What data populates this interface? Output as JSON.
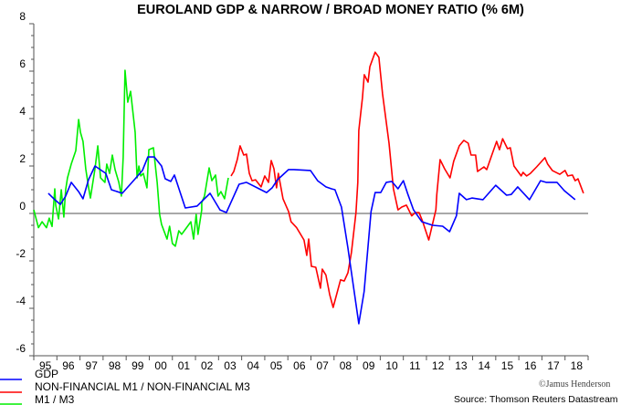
{
  "chart_data": {
    "type": "line",
    "title": "EUROLAND GDP & NARROW / BROAD MONEY RATIO (% 6M)",
    "xlabel": "",
    "ylabel": "",
    "ylim": [
      -6,
      8
    ],
    "xlim": [
      1995,
      2019
    ],
    "yticks": [
      "8",
      "6",
      "4",
      "2",
      "0",
      "-2",
      "-4",
      "-6"
    ],
    "ytick_values": [
      8,
      6,
      4,
      2,
      0,
      -2,
      -4,
      -6
    ],
    "xticks": [
      "95",
      "96",
      "97",
      "98",
      "99",
      "00",
      "01",
      "02",
      "03",
      "04",
      "05",
      "06",
      "07",
      "08",
      "09",
      "10",
      "11",
      "12",
      "13",
      "14",
      "15",
      "16",
      "17",
      "18"
    ],
    "legend_position": "bottom-left",
    "source": "Source: Thomson Reuters Datastream",
    "credit": "©Jamus Henderson",
    "series": [
      {
        "name": "GDP",
        "color": "#0000ff",
        "points": [
          [
            1995.63,
            0.85
          ],
          [
            1995.91,
            0.58
          ],
          [
            1996.15,
            0.38
          ],
          [
            1996.38,
            0.73
          ],
          [
            1996.62,
            1.31
          ],
          [
            1996.94,
            0.92
          ],
          [
            1997.13,
            0.62
          ],
          [
            1997.37,
            1.42
          ],
          [
            1997.65,
            2.0
          ],
          [
            1998.12,
            1.69
          ],
          [
            1998.36,
            1.0
          ],
          [
            1998.83,
            0.85
          ],
          [
            1999.39,
            1.46
          ],
          [
            1999.7,
            1.81
          ],
          [
            1999.94,
            2.38
          ],
          [
            2000.22,
            2.38
          ],
          [
            2000.53,
            2.0
          ],
          [
            2000.69,
            1.46
          ],
          [
            2000.93,
            1.35
          ],
          [
            2001.09,
            1.62
          ],
          [
            2001.56,
            0.23
          ],
          [
            2002.07,
            0.31
          ],
          [
            2002.63,
            0.85
          ],
          [
            2003.06,
            0.15
          ],
          [
            2003.34,
            0.04
          ],
          [
            2003.89,
            1.23
          ],
          [
            2004.21,
            1.31
          ],
          [
            2004.76,
            1.04
          ],
          [
            2005.08,
            0.88
          ],
          [
            2005.32,
            1.08
          ],
          [
            2005.55,
            1.42
          ],
          [
            2006.03,
            1.85
          ],
          [
            2006.26,
            1.85
          ],
          [
            2006.98,
            1.81
          ],
          [
            2007.29,
            1.38
          ],
          [
            2007.65,
            1.12
          ],
          [
            2007.89,
            1.04
          ],
          [
            2008.04,
            1.0
          ],
          [
            2008.32,
            0.27
          ],
          [
            2008.6,
            -1.46
          ],
          [
            2009.07,
            -4.65
          ],
          [
            2009.3,
            -3.3
          ],
          [
            2009.6,
            0.08
          ],
          [
            2009.78,
            0.88
          ],
          [
            2010.02,
            0.88
          ],
          [
            2010.26,
            1.31
          ],
          [
            2010.5,
            1.35
          ],
          [
            2010.77,
            1.04
          ],
          [
            2011.0,
            1.38
          ],
          [
            2011.2,
            0.8
          ],
          [
            2011.44,
            0.15
          ],
          [
            2011.8,
            -0.35
          ],
          [
            2012.27,
            -0.5
          ],
          [
            2012.7,
            -0.54
          ],
          [
            2013.0,
            -0.77
          ],
          [
            2013.3,
            -0.1
          ],
          [
            2013.42,
            0.85
          ],
          [
            2013.73,
            0.58
          ],
          [
            2013.97,
            0.65
          ],
          [
            2014.45,
            0.58
          ],
          [
            2015.0,
            1.19
          ],
          [
            2015.47,
            0.77
          ],
          [
            2015.67,
            0.8
          ],
          [
            2015.95,
            1.12
          ],
          [
            2016.46,
            0.58
          ],
          [
            2016.94,
            1.38
          ],
          [
            2017.18,
            1.31
          ],
          [
            2017.65,
            1.31
          ],
          [
            2017.97,
            0.96
          ],
          [
            2018.44,
            0.58
          ]
        ]
      },
      {
        "name": "NON-FINANCIAL M1 / NON-FINANCIAL M3",
        "color": "#ff0000",
        "points": [
          [
            2003.54,
            1.58
          ],
          [
            2003.66,
            1.77
          ],
          [
            2003.81,
            2.27
          ],
          [
            2003.93,
            2.85
          ],
          [
            2004.09,
            2.46
          ],
          [
            2004.21,
            2.5
          ],
          [
            2004.33,
            1.69
          ],
          [
            2004.45,
            1.38
          ],
          [
            2004.6,
            1.42
          ],
          [
            2004.84,
            1.12
          ],
          [
            2005.0,
            1.58
          ],
          [
            2005.16,
            1.31
          ],
          [
            2005.28,
            2.23
          ],
          [
            2005.4,
            1.88
          ],
          [
            2005.51,
            1.08
          ],
          [
            2005.59,
            1.69
          ],
          [
            2005.79,
            0.62
          ],
          [
            2006.03,
            0.08
          ],
          [
            2006.14,
            -0.35
          ],
          [
            2006.38,
            -0.6
          ],
          [
            2006.7,
            -1.12
          ],
          [
            2006.82,
            -1.77
          ],
          [
            2006.9,
            -1.08
          ],
          [
            2007.02,
            -2.23
          ],
          [
            2007.21,
            -2.27
          ],
          [
            2007.41,
            -3.15
          ],
          [
            2007.49,
            -2.35
          ],
          [
            2007.65,
            -2.6
          ],
          [
            2007.81,
            -3.42
          ],
          [
            2007.96,
            -3.96
          ],
          [
            2008.28,
            -2.8
          ],
          [
            2008.44,
            -2.85
          ],
          [
            2008.6,
            -2.5
          ],
          [
            2008.75,
            -1.65
          ],
          [
            2008.95,
            0.04
          ],
          [
            2009.03,
            1.31
          ],
          [
            2009.07,
            3.5
          ],
          [
            2009.23,
            4.88
          ],
          [
            2009.31,
            5.85
          ],
          [
            2009.47,
            5.54
          ],
          [
            2009.55,
            6.19
          ],
          [
            2009.78,
            6.8
          ],
          [
            2009.94,
            6.58
          ],
          [
            2010.1,
            5.04
          ],
          [
            2010.38,
            2.96
          ],
          [
            2010.57,
            1.04
          ],
          [
            2010.77,
            0.15
          ],
          [
            2010.93,
            0.27
          ],
          [
            2011.13,
            0.35
          ],
          [
            2011.36,
            -0.1
          ],
          [
            2011.52,
            0.04
          ],
          [
            2011.68,
            0.04
          ],
          [
            2011.84,
            -0.35
          ],
          [
            2012.1,
            -1.12
          ],
          [
            2012.41,
            0.15
          ],
          [
            2012.45,
            0.8
          ],
          [
            2012.59,
            2.27
          ],
          [
            2012.79,
            1.88
          ],
          [
            2013.02,
            1.5
          ],
          [
            2013.18,
            2.2
          ],
          [
            2013.42,
            2.85
          ],
          [
            2013.62,
            3.08
          ],
          [
            2013.81,
            2.96
          ],
          [
            2013.93,
            2.46
          ],
          [
            2014.13,
            2.46
          ],
          [
            2014.21,
            1.77
          ],
          [
            2014.49,
            1.96
          ],
          [
            2014.61,
            1.85
          ],
          [
            2014.8,
            2.38
          ],
          [
            2015.04,
            3.04
          ],
          [
            2015.16,
            2.69
          ],
          [
            2015.3,
            3.15
          ],
          [
            2015.51,
            2.73
          ],
          [
            2015.63,
            2.77
          ],
          [
            2015.79,
            2.0
          ],
          [
            2016.1,
            1.58
          ],
          [
            2016.18,
            1.73
          ],
          [
            2016.34,
            1.58
          ],
          [
            2016.5,
            1.69
          ],
          [
            2016.77,
            1.96
          ],
          [
            2017.13,
            2.35
          ],
          [
            2017.25,
            2.08
          ],
          [
            2017.45,
            1.81
          ],
          [
            2017.77,
            1.65
          ],
          [
            2018.0,
            1.81
          ],
          [
            2018.12,
            1.58
          ],
          [
            2018.32,
            1.62
          ],
          [
            2018.44,
            1.38
          ],
          [
            2018.56,
            1.46
          ],
          [
            2018.8,
            0.85
          ]
        ]
      },
      {
        "name": "M1 / M3",
        "color": "#00ee00",
        "points": [
          [
            1995.0,
            0.15
          ],
          [
            1995.2,
            -0.6
          ],
          [
            1995.36,
            -0.35
          ],
          [
            1995.55,
            -0.6
          ],
          [
            1995.67,
            -0.2
          ],
          [
            1995.79,
            -0.55
          ],
          [
            1995.91,
            1.04
          ],
          [
            1995.95,
            0.35
          ],
          [
            1996.07,
            -0.23
          ],
          [
            1996.19,
            1.0
          ],
          [
            1996.3,
            -0.15
          ],
          [
            1996.38,
            1.0
          ],
          [
            1996.46,
            1.5
          ],
          [
            1996.62,
            2.08
          ],
          [
            1996.82,
            2.65
          ],
          [
            1996.94,
            3.96
          ],
          [
            1997.02,
            3.42
          ],
          [
            1997.13,
            3.04
          ],
          [
            1997.25,
            1.88
          ],
          [
            1997.37,
            1.12
          ],
          [
            1997.45,
            0.65
          ],
          [
            1997.65,
            1.88
          ],
          [
            1997.77,
            2.85
          ],
          [
            1997.89,
            1.5
          ],
          [
            1998.08,
            1.31
          ],
          [
            1998.16,
            2.08
          ],
          [
            1998.28,
            1.69
          ],
          [
            1998.4,
            2.46
          ],
          [
            1998.52,
            1.85
          ],
          [
            1998.68,
            1.31
          ],
          [
            1998.79,
            0.73
          ],
          [
            1998.87,
            2.38
          ],
          [
            1998.95,
            6.04
          ],
          [
            1999.07,
            4.69
          ],
          [
            1999.19,
            5.15
          ],
          [
            1999.39,
            3.42
          ],
          [
            1999.47,
            1.5
          ],
          [
            1999.55,
            2.0
          ],
          [
            1999.63,
            1.58
          ],
          [
            1999.74,
            1.69
          ],
          [
            1999.9,
            1.08
          ],
          [
            1999.98,
            2.69
          ],
          [
            2000.18,
            2.77
          ],
          [
            2000.34,
            1.31
          ],
          [
            2000.45,
            -0.04
          ],
          [
            2000.53,
            -0.46
          ],
          [
            2000.77,
            -1.08
          ],
          [
            2000.88,
            -0.54
          ],
          [
            2001.0,
            -1.27
          ],
          [
            2001.13,
            -1.38
          ],
          [
            2001.28,
            -0.73
          ],
          [
            2001.4,
            -0.88
          ],
          [
            2001.6,
            -0.62
          ],
          [
            2001.8,
            -0.35
          ],
          [
            2001.92,
            -1.08
          ],
          [
            2002.03,
            -0.04
          ],
          [
            2002.11,
            -0.88
          ],
          [
            2002.27,
            0.15
          ],
          [
            2002.27,
            0.46
          ],
          [
            2002.39,
            0.73
          ],
          [
            2002.59,
            1.92
          ],
          [
            2002.71,
            1.38
          ],
          [
            2002.87,
            1.62
          ],
          [
            2002.98,
            0.73
          ],
          [
            2003.1,
            0.92
          ],
          [
            2003.26,
            0.62
          ],
          [
            2003.42,
            1.5
          ]
        ]
      }
    ]
  }
}
